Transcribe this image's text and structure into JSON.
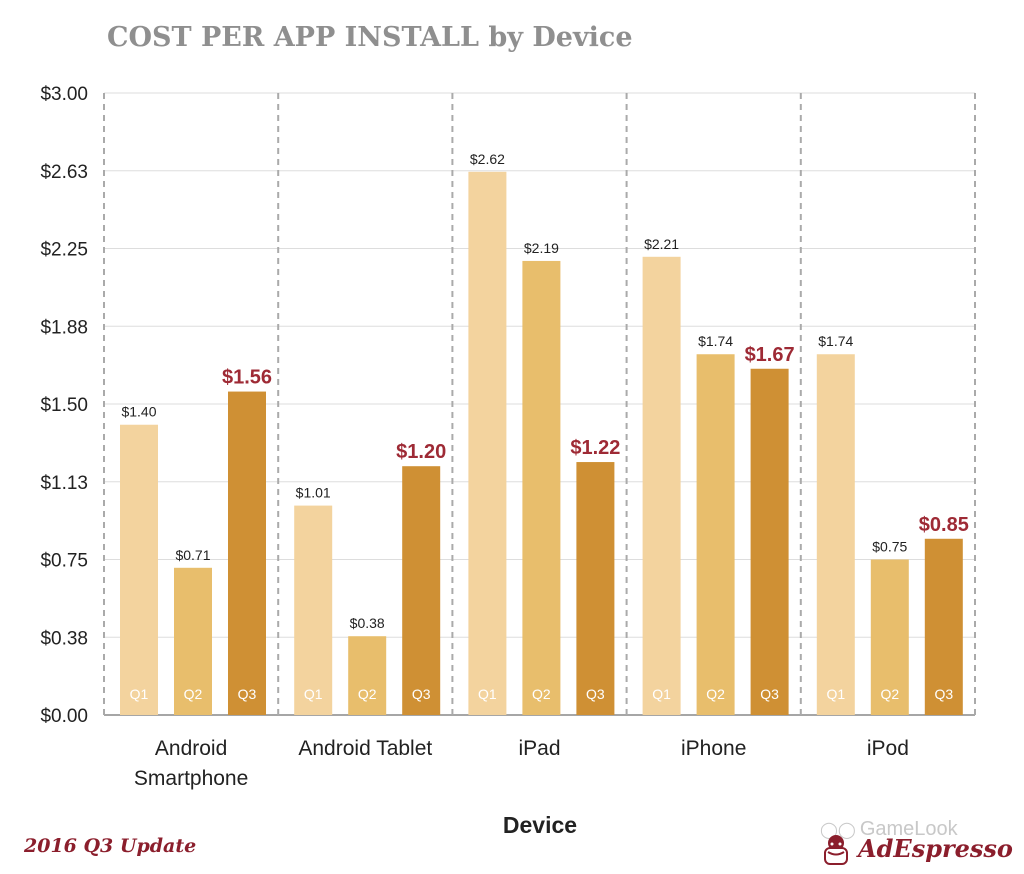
{
  "title": "COST PER APP INSTALL by Device",
  "footer": {
    "note": "2016 Q3 Update",
    "watermark": "GameLook",
    "brand": "AdEspresso"
  },
  "chart_data": {
    "type": "bar",
    "title": "COST PER APP INSTALL by Device",
    "xlabel": "Device",
    "ylabel": "",
    "ylim": [
      0,
      3.0
    ],
    "y_ticks": [
      "$0.00",
      "$0.38",
      "$0.75",
      "$1.13",
      "$1.50",
      "$1.88",
      "$2.25",
      "$2.63",
      "$3.00"
    ],
    "y_tick_values": [
      0,
      0.375,
      0.75,
      1.125,
      1.5,
      1.875,
      2.25,
      2.625,
      3.0
    ],
    "grid": true,
    "categories": [
      [
        "Android",
        "Smartphone"
      ],
      [
        "Android Tablet"
      ],
      [
        "iPad"
      ],
      [
        "iPhone"
      ],
      [
        "iPod"
      ]
    ],
    "series": [
      {
        "name": "Q1",
        "color": "#f3d39e",
        "values": [
          1.4,
          1.01,
          2.62,
          2.21,
          1.74
        ],
        "labels": [
          "$1.40",
          "$1.01",
          "$2.62",
          "$2.21",
          "$1.74"
        ]
      },
      {
        "name": "Q2",
        "color": "#e8be6c",
        "values": [
          0.71,
          0.38,
          2.19,
          1.74,
          0.75
        ],
        "labels": [
          "$0.71",
          "$0.38",
          "$2.19",
          "$1.74",
          "$0.75"
        ]
      },
      {
        "name": "Q3",
        "color": "#cf9034",
        "values": [
          1.56,
          1.2,
          1.22,
          1.67,
          0.85
        ],
        "labels": [
          "$1.56",
          "$1.20",
          "$1.22",
          "$1.67",
          "$0.85"
        ]
      }
    ],
    "highlight_series": "Q3",
    "highlight_label_color": "#9e2a35",
    "label_color": "#222222"
  }
}
